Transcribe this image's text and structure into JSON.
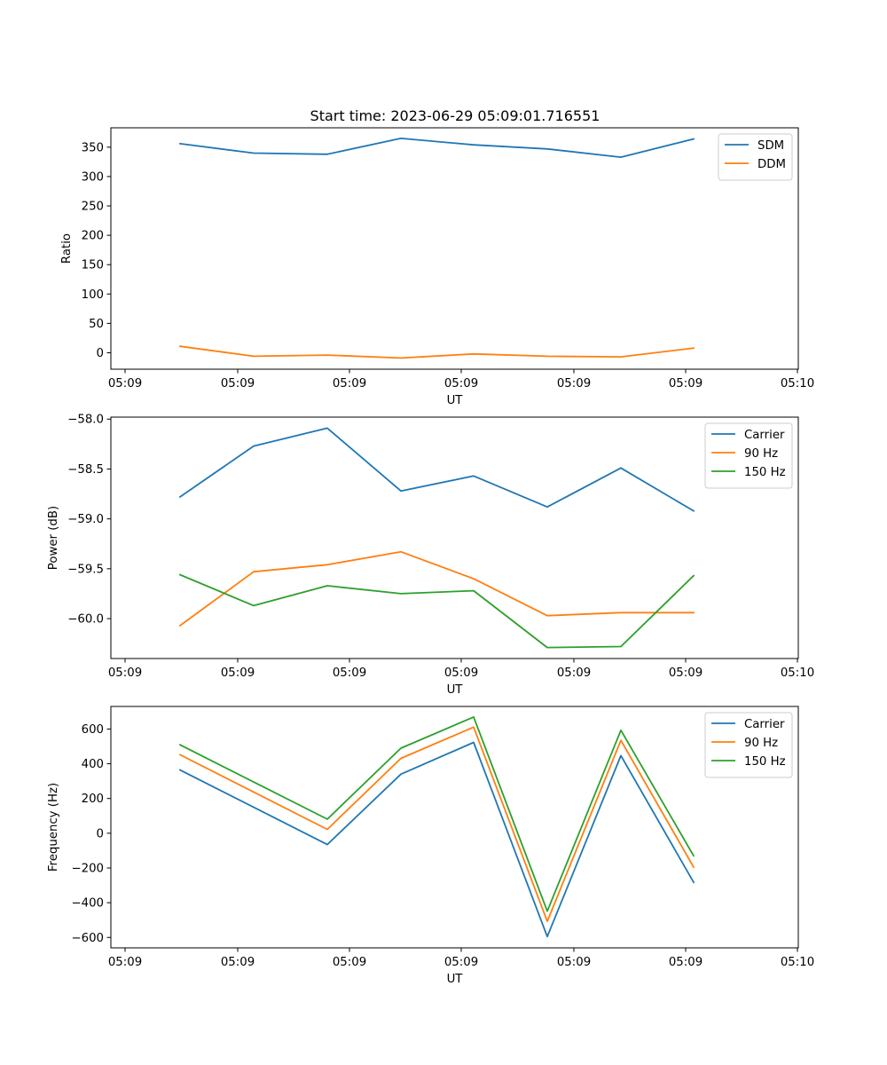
{
  "figure_title": "Start time: 2023-06-29 05:09:01.716551",
  "chart_data": [
    {
      "type": "line",
      "xlabel": "UT",
      "ylabel": "Ratio",
      "x_tick_labels": [
        "05:09",
        "05:09",
        "05:09",
        "05:09",
        "05:09",
        "05:09",
        "05:09",
        "05:10"
      ],
      "y_ticks": [
        0,
        50,
        100,
        150,
        200,
        250,
        300,
        350
      ],
      "ylim": [
        -28,
        383
      ],
      "legend_placement": "top-right",
      "grid": false,
      "series": [
        {
          "name": "SDM",
          "color": "#1f77b4",
          "values": [
            356,
            340,
            338,
            365,
            354,
            347,
            333,
            364
          ]
        },
        {
          "name": "DDM",
          "color": "#ff7f0e",
          "values": [
            11,
            -6,
            -4,
            -9,
            -2,
            -6,
            -7,
            8
          ]
        }
      ]
    },
    {
      "type": "line",
      "xlabel": "UT",
      "ylabel": "Power (dB)",
      "x_tick_labels": [
        "05:09",
        "05:09",
        "05:09",
        "05:09",
        "05:09",
        "05:09",
        "05:09",
        "05:10"
      ],
      "y_ticks": [
        -60.0,
        -59.5,
        -59.0,
        -58.5,
        -58.0
      ],
      "y_tick_labels": [
        "−60.0",
        "−59.5",
        "−59.0",
        "−58.5",
        "−58.0"
      ],
      "ylim": [
        -60.4,
        -57.98
      ],
      "legend_placement": "top-right",
      "grid": false,
      "series": [
        {
          "name": "Carrier",
          "color": "#1f77b4",
          "values": [
            -58.78,
            -58.27,
            -58.09,
            -58.72,
            -58.57,
            -58.88,
            -58.49,
            -58.92
          ]
        },
        {
          "name": "90 Hz",
          "color": "#ff7f0e",
          "values": [
            -60.07,
            -59.53,
            -59.46,
            -59.33,
            -59.6,
            -59.97,
            -59.94,
            -59.94
          ]
        },
        {
          "name": "150 Hz",
          "color": "#2ca02c",
          "values": [
            -59.56,
            -59.87,
            -59.67,
            -59.75,
            -59.72,
            -60.29,
            -60.28,
            -59.57
          ]
        }
      ]
    },
    {
      "type": "line",
      "xlabel": "UT",
      "ylabel": "Frequency (Hz)",
      "x_tick_labels": [
        "05:09",
        "05:09",
        "05:09",
        "05:09",
        "05:09",
        "05:09",
        "05:09",
        "05:10"
      ],
      "y_ticks": [
        -600,
        -400,
        -200,
        0,
        200,
        400,
        600
      ],
      "y_tick_labels": [
        "−600",
        "−400",
        "−200",
        "0",
        "200",
        "400",
        "600"
      ],
      "ylim": [
        -660,
        730
      ],
      "legend_placement": "top-right",
      "grid": false,
      "series": [
        {
          "name": "Carrier",
          "color": "#1f77b4",
          "values": [
            364,
            null,
            -65,
            340,
            523,
            -595,
            447,
            -283
          ]
        },
        {
          "name": "90 Hz",
          "color": "#ff7f0e",
          "values": [
            452,
            null,
            22,
            431,
            611,
            -507,
            535,
            -195
          ]
        },
        {
          "name": "150 Hz",
          "color": "#2ca02c",
          "values": [
            509,
            null,
            81,
            490,
            669,
            -449,
            593,
            -130
          ]
        }
      ]
    }
  ]
}
